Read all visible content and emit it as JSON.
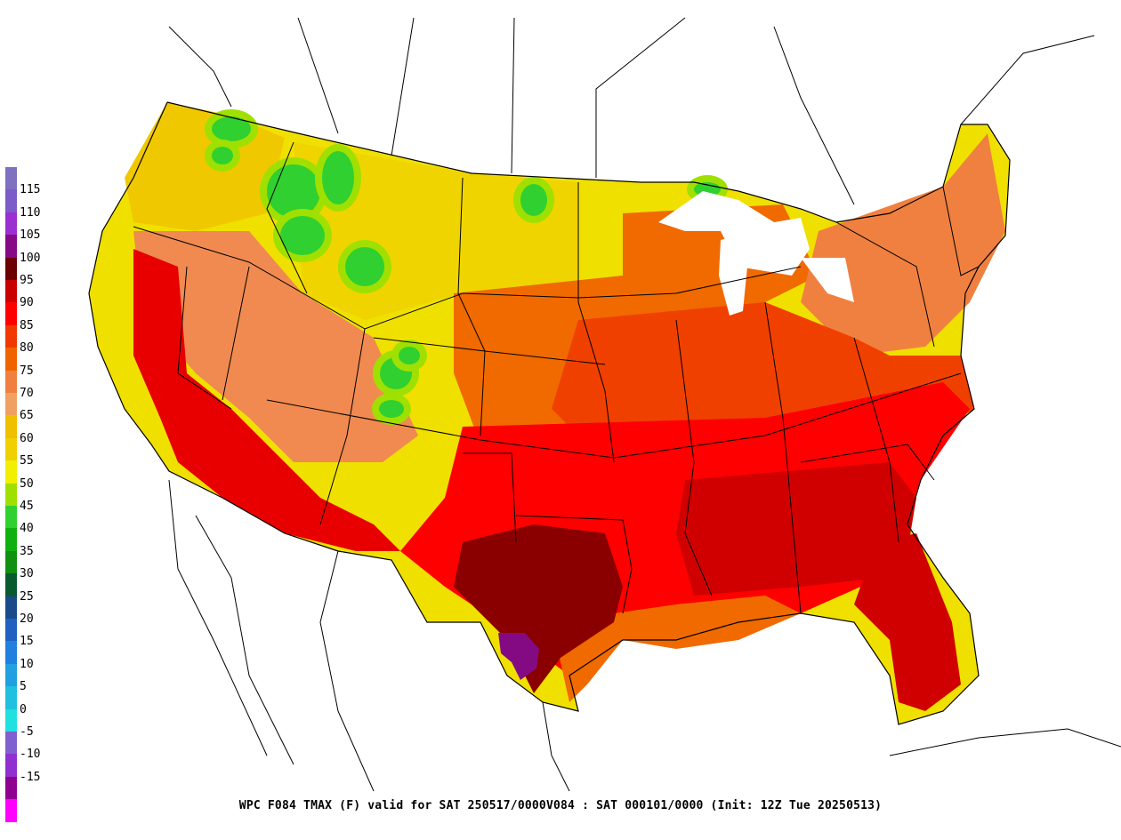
{
  "caption": "WPC F084 TMAX (F) valid for  SAT 250517/0000V084 : SAT 000101/0000 (Init: 12Z Tue 20250513)",
  "legend": {
    "levels": [
      {
        "label": "115",
        "color": "#7b5cc8"
      },
      {
        "label": "110",
        "color": "#9b2fd1"
      },
      {
        "label": "105",
        "color": "#860a86"
      },
      {
        "label": "100",
        "color": "#6a0000"
      },
      {
        "label": "95",
        "color": "#c80000"
      },
      {
        "label": "90",
        "color": "#ff0000"
      },
      {
        "label": "85",
        "color": "#f03800"
      },
      {
        "label": "80",
        "color": "#f06400"
      },
      {
        "label": "75",
        "color": "#f08040"
      },
      {
        "label": "70",
        "color": "#f0a060"
      },
      {
        "label": "65",
        "color": "#f0c000"
      },
      {
        "label": "60",
        "color": "#f0d000"
      },
      {
        "label": "55",
        "color": "#f0f000"
      },
      {
        "label": "50",
        "color": "#a0e000"
      },
      {
        "label": "45",
        "color": "#30d030"
      },
      {
        "label": "40",
        "color": "#10b010"
      },
      {
        "label": "35",
        "color": "#109010"
      },
      {
        "label": "30",
        "color": "#0a5a30"
      },
      {
        "label": "25",
        "color": "#1a4a8a"
      },
      {
        "label": "20",
        "color": "#2060c0"
      },
      {
        "label": "15",
        "color": "#2080e0"
      },
      {
        "label": "10",
        "color": "#20a0e0"
      },
      {
        "label": "5",
        "color": "#20c0e0"
      },
      {
        "label": "0",
        "color": "#20e0e0"
      },
      {
        "label": "-5",
        "color": "#8060d0"
      },
      {
        "label": "-10",
        "color": "#9030d0"
      },
      {
        "label": "-15",
        "color": "#900090"
      }
    ],
    "top_color": "#8070c0",
    "bottom_color": "#ff00ff"
  },
  "map": {
    "region": "CONUS",
    "variable": "TMAX",
    "colors": {
      "west_coast": "#f0e000",
      "pacific_nw": "#f0c800",
      "rockies_green": "#30d030",
      "rockies_yellowgreen": "#a0e000",
      "northern_plains": "#f0d400",
      "great_basin": "#f08a50",
      "desert_sw": "#e80000",
      "central_plains": "#f06a00",
      "midwest": "#f04000",
      "southeast": "#ff0000",
      "southeast_core": "#d00000",
      "texas_core": "#8a0000",
      "texas_hot": "#840a84",
      "great_lakes": "#f06a00",
      "northeast": "#f08040",
      "gulf_coast": "#f06a00",
      "florida": "#d00000",
      "outline": "#000000"
    }
  }
}
